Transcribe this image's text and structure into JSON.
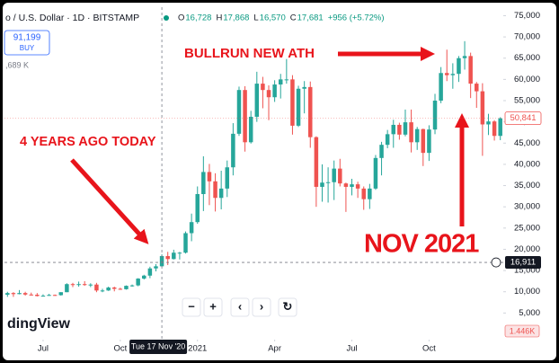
{
  "chart_data": {
    "type": "candlestick",
    "title": "o / U.S. Dollar · 1D · BITSTAMP",
    "readout": [
      {
        "key": "O",
        "value": "16,728"
      },
      {
        "key": "H",
        "value": "17,868"
      },
      {
        "key": "L",
        "value": "16,570"
      },
      {
        "key": "C",
        "value": "17,681"
      }
    ],
    "change": "+956 (+5.72%)",
    "buy": {
      "price": "91,199",
      "label": "BUY"
    },
    "side_text": ",689 K",
    "logo": "dingView",
    "annotations": [
      "BULLRUN NEW ATH",
      "4 YEARS AGO TODAY",
      "NOV 2021"
    ],
    "buttons": [
      "−",
      "+",
      "‹",
      "›",
      "↻"
    ],
    "volume_badge": "1.446K",
    "up_color": "#26a69a",
    "down_color": "#ef5350",
    "grid": false,
    "ylim": [
      0,
      77000
    ],
    "yticks": [
      {
        "value": 5000,
        "label": "5,000"
      },
      {
        "value": 10000,
        "label": "10,000"
      },
      {
        "value": 15000,
        "label": "15,000"
      },
      {
        "value": 20000,
        "label": "20,000"
      },
      {
        "value": 25000,
        "label": "25,000"
      },
      {
        "value": 30000,
        "label": "30,000"
      },
      {
        "value": 35000,
        "label": "35,000"
      },
      {
        "value": 40000,
        "label": "40,000"
      },
      {
        "value": 45000,
        "label": "45,000"
      },
      {
        "value": 50000,
        "label": "50,000"
      },
      {
        "value": 55000,
        "label": "55,000"
      },
      {
        "value": 60000,
        "label": "60,000"
      },
      {
        "value": 65000,
        "label": "65,000"
      },
      {
        "value": 70000,
        "label": "70,000"
      },
      {
        "value": 75000,
        "label": "75,000"
      }
    ],
    "xticks": [
      {
        "value": 6,
        "label": "Jul"
      },
      {
        "value": 19,
        "label": "Oct"
      },
      {
        "value": 32,
        "label": "2021"
      },
      {
        "value": 45,
        "label": "Apr"
      },
      {
        "value": 58,
        "label": "Jul"
      },
      {
        "value": 71,
        "label": "Oct"
      }
    ],
    "crosshair": {
      "price": {
        "value": 16911,
        "label": "16,911"
      },
      "date": "Tue 17 Nov '20",
      "index": 26
    },
    "last_price": {
      "value": 50841,
      "label": "50,841"
    },
    "categories": [
      null,
      null,
      null,
      null,
      null,
      null,
      null,
      null,
      null,
      null,
      null,
      null,
      null,
      null,
      null,
      null,
      null,
      null,
      null,
      null,
      null,
      null,
      null,
      null,
      null,
      null,
      null,
      null,
      null,
      null,
      null,
      null,
      null,
      null,
      null,
      null,
      null,
      null,
      null,
      null,
      null,
      null,
      null,
      null,
      null,
      null,
      null,
      null,
      null,
      null,
      null,
      null,
      null,
      null,
      null,
      null,
      null,
      null,
      null,
      null,
      null,
      null,
      null,
      null,
      null,
      null,
      null,
      null,
      null,
      null,
      null,
      null,
      null,
      null,
      null,
      null,
      null,
      null,
      null,
      null,
      null,
      null,
      null,
      null
    ],
    "ohlc": [
      [
        9300,
        10000,
        8800,
        9700
      ],
      [
        9700,
        9900,
        8800,
        9450
      ],
      [
        9450,
        10400,
        9400,
        9700
      ],
      [
        9700,
        10000,
        9100,
        9350
      ],
      [
        9350,
        9800,
        9100,
        9300
      ],
      [
        9300,
        9700,
        8900,
        9000
      ],
      [
        9000,
        9400,
        8900,
        9070
      ],
      [
        9070,
        9500,
        9050,
        9250
      ],
      [
        9250,
        9350,
        9050,
        9200
      ],
      [
        9200,
        9900,
        9100,
        9900
      ],
      [
        9900,
        12000,
        9900,
        11800
      ],
      [
        11800,
        12100,
        11100,
        11600
      ],
      [
        11600,
        12400,
        11200,
        11800
      ],
      [
        11800,
        12500,
        11400,
        11700
      ],
      [
        11700,
        12000,
        11100,
        11700
      ],
      [
        11700,
        12100,
        9900,
        10300
      ],
      [
        10300,
        10700,
        9900,
        10300
      ],
      [
        10300,
        11200,
        10200,
        11000
      ],
      [
        11000,
        11200,
        10100,
        10700
      ],
      [
        10700,
        10950,
        10450,
        10600
      ],
      [
        10600,
        11500,
        10500,
        11400
      ],
      [
        11400,
        11700,
        11200,
        11500
      ],
      [
        11500,
        13200,
        11300,
        13100
      ],
      [
        13100,
        14000,
        12900,
        13800
      ],
      [
        13800,
        15900,
        13200,
        15500
      ],
      [
        15500,
        16500,
        14800,
        16000
      ],
      [
        16000,
        18800,
        15900,
        18400
      ],
      [
        18400,
        19400,
        16300,
        17700
      ],
      [
        17700,
        19900,
        17600,
        19200
      ],
      [
        19200,
        19400,
        17600,
        19200
      ],
      [
        19200,
        24200,
        19000,
        23800
      ],
      [
        23800,
        28400,
        21900,
        26400
      ],
      [
        26400,
        34800,
        26000,
        33000
      ],
      [
        33000,
        41900,
        29000,
        38200
      ],
      [
        38200,
        40100,
        30400,
        36000
      ],
      [
        36000,
        37900,
        28900,
        32100
      ],
      [
        32100,
        38500,
        29400,
        34300
      ],
      [
        34300,
        40900,
        32300,
        39300
      ],
      [
        39300,
        49700,
        37400,
        47200
      ],
      [
        47200,
        58300,
        46700,
        57500
      ],
      [
        57500,
        58400,
        43000,
        45200
      ],
      [
        45200,
        52600,
        44900,
        51200
      ],
      [
        51200,
        61800,
        50000,
        59000
      ],
      [
        59000,
        60600,
        53200,
        57500
      ],
      [
        57500,
        58600,
        50400,
        55800
      ],
      [
        55800,
        59800,
        54700,
        58800
      ],
      [
        58800,
        61300,
        55500,
        60000
      ],
      [
        60000,
        64800,
        59000,
        60000
      ],
      [
        60000,
        61000,
        47000,
        49100
      ],
      [
        49100,
        58500,
        48800,
        57800
      ],
      [
        57800,
        59600,
        52000,
        58200
      ],
      [
        58200,
        59500,
        43900,
        46400
      ],
      [
        46400,
        46600,
        30000,
        34700
      ],
      [
        34700,
        40000,
        31200,
        35700
      ],
      [
        35700,
        39300,
        31000,
        35800
      ],
      [
        35800,
        40900,
        31600,
        39000
      ],
      [
        39000,
        41300,
        34800,
        35500
      ],
      [
        35500,
        35700,
        28800,
        34700
      ],
      [
        34700,
        36600,
        32700,
        35300
      ],
      [
        35300,
        35900,
        32100,
        34300
      ],
      [
        34300,
        34800,
        29300,
        31800
      ],
      [
        31800,
        35400,
        29500,
        34300
      ],
      [
        34300,
        42200,
        34000,
        41500
      ],
      [
        41500,
        45300,
        37400,
        44600
      ],
      [
        44600,
        48100,
        43800,
        47100
      ],
      [
        47100,
        50500,
        43900,
        49300
      ],
      [
        49300,
        49800,
        45800,
        47000
      ],
      [
        47000,
        52900,
        46600,
        49900
      ],
      [
        49900,
        52900,
        42800,
        45200
      ],
      [
        45200,
        48800,
        43400,
        48300
      ],
      [
        48300,
        48400,
        39600,
        42700
      ],
      [
        42700,
        49200,
        40800,
        48200
      ],
      [
        48200,
        56600,
        47100,
        55000
      ],
      [
        55000,
        62900,
        54400,
        61500
      ],
      [
        61500,
        67000,
        59600,
        61000
      ],
      [
        61000,
        63800,
        57800,
        61300
      ],
      [
        61300,
        65500,
        59400,
        65000
      ],
      [
        65000,
        69000,
        62300,
        65500
      ],
      [
        65500,
        66300,
        55600,
        59000
      ],
      [
        59000,
        59400,
        53300,
        57200
      ],
      [
        57200,
        59100,
        42000,
        49400
      ],
      [
        49400,
        51900,
        46900,
        50100
      ],
      [
        50100,
        50400,
        45600,
        46700
      ],
      [
        46700,
        51100,
        45700,
        50841
      ]
    ]
  }
}
